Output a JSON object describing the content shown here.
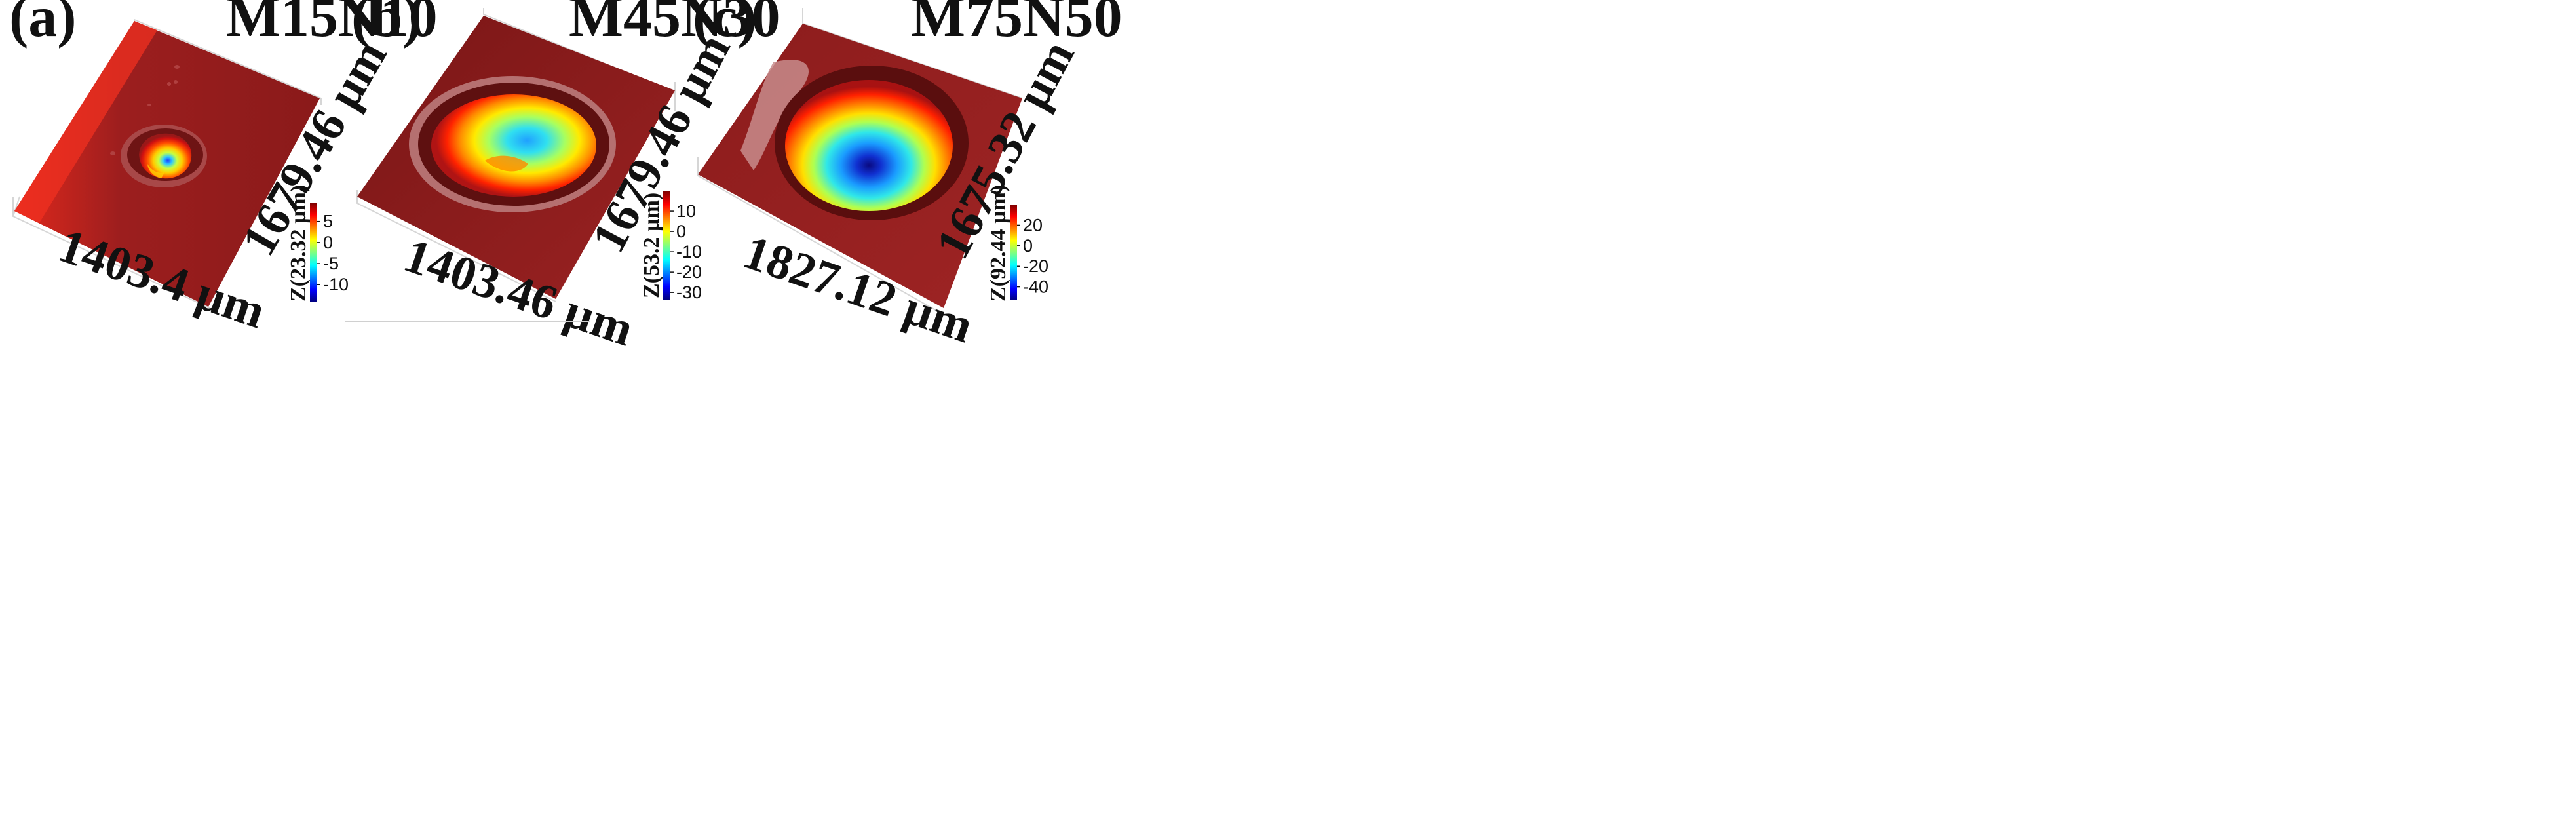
{
  "figure": {
    "description_colormap": "jet",
    "colors": {
      "surface_base": "#8a1d1d",
      "surface_dark": "#6e1414",
      "rim_highlight": "#c98a8a",
      "grid_line": "#d8d8d8"
    }
  },
  "chart_data": [
    {
      "type": "heatmap",
      "panel": "(a)",
      "title": "M15N10",
      "x_extent_label": "1403.4 µm",
      "y_extent_label": "1679.46 µm",
      "colorbar_label": "Z(23.32 µm)",
      "zlim": [
        -14,
        9.3
      ],
      "colorbar_ticks": [
        5,
        0,
        -5,
        -10
      ],
      "colorbar_tick_labels": [
        "5",
        "0",
        "-5",
        "-10"
      ]
    },
    {
      "type": "heatmap",
      "panel": "(b)",
      "title": "M45N30",
      "x_extent_label": "1403.46 µm",
      "y_extent_label": "1679.46 µm",
      "colorbar_label": "Z(53.2 µm)",
      "zlim": [
        -33.5,
        19.7
      ],
      "colorbar_ticks": [
        10,
        0,
        -10,
        -20,
        -30
      ],
      "colorbar_tick_labels": [
        "10",
        "0",
        "-10",
        "-20",
        "-30"
      ]
    },
    {
      "type": "heatmap",
      "panel": "(c)",
      "title": "M75N50",
      "x_extent_label": "1827.12 µm",
      "y_extent_label": "1675.32 µm",
      "colorbar_label": "Z(92.44 µm)",
      "zlim": [
        -53,
        39.4
      ],
      "colorbar_ticks": [
        20,
        0,
        -20,
        -40
      ],
      "colorbar_tick_labels": [
        "20",
        "0",
        "-20",
        "-40"
      ]
    }
  ]
}
